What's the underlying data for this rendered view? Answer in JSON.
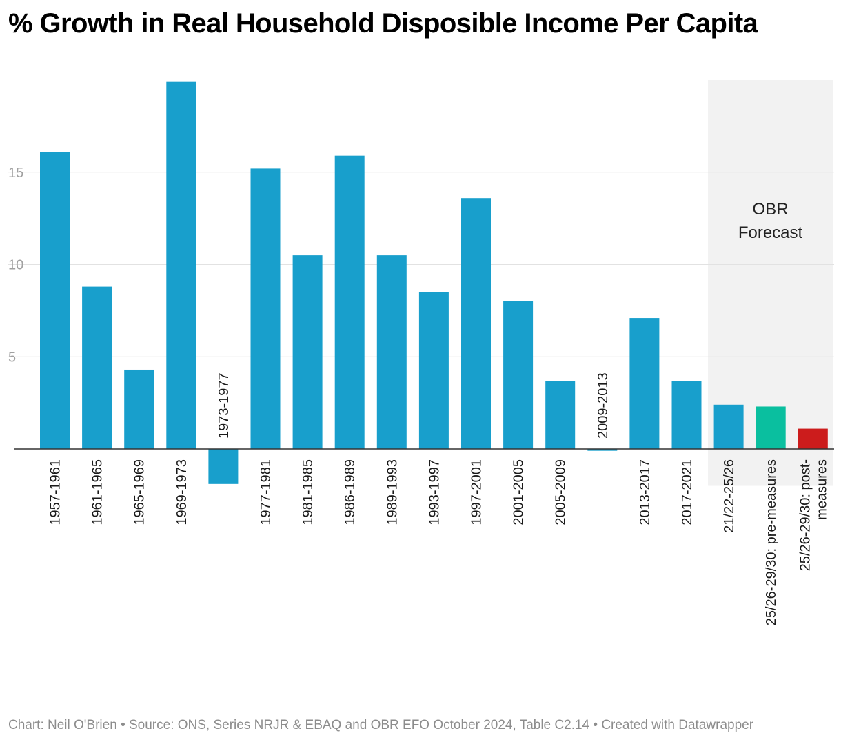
{
  "footer": "Chart: Neil O'Brien • Source: ONS, Series NRJR & EBAQ and OBR EFO October 2024, Table C2.14 • Created with Datawrapper",
  "chart_data": {
    "type": "bar",
    "title": "% Growth in Real Household Disposible Income Per Capita",
    "xlabel": "",
    "ylabel": "",
    "ylim": [
      -2,
      20
    ],
    "yticks": [
      5,
      10,
      15
    ],
    "grid": true,
    "categories": [
      "1957-1961",
      "1961-1965",
      "1965-1969",
      "1969-1973",
      "1973-1977",
      "1977-1981",
      "1981-1985",
      "1986-1989",
      "1989-1993",
      "1993-1997",
      "1997-2001",
      "2001-2005",
      "2005-2009",
      "2009-2013",
      "2013-2017",
      "2017-2021",
      "21/22-25/26",
      "25/26-29/30: pre-measures",
      "25/26-29/30: post-measures"
    ],
    "label_lines": [
      [
        "1957-1961"
      ],
      [
        "1961-1965"
      ],
      [
        "1965-1969"
      ],
      [
        "1969-1973"
      ],
      [
        "1973-1977"
      ],
      [
        "1977-1981"
      ],
      [
        "1981-1985"
      ],
      [
        "1986-1989"
      ],
      [
        "1989-1993"
      ],
      [
        "1993-1997"
      ],
      [
        "1997-2001"
      ],
      [
        "2001-2005"
      ],
      [
        "2005-2009"
      ],
      [
        "2009-2013"
      ],
      [
        "2013-2017"
      ],
      [
        "2017-2021"
      ],
      [
        "21/22-25/26"
      ],
      [
        "25/26-29/30: pre-measures"
      ],
      [
        "25/26-29/30: post-",
        "measures"
      ]
    ],
    "values": [
      16.1,
      8.8,
      4.3,
      19.9,
      -1.9,
      15.2,
      10.5,
      15.9,
      10.5,
      8.5,
      13.6,
      8.0,
      3.7,
      -0.1,
      7.1,
      3.7,
      2.4,
      2.3,
      1.1
    ],
    "colors": [
      "#189fcc",
      "#189fcc",
      "#189fcc",
      "#189fcc",
      "#189fcc",
      "#189fcc",
      "#189fcc",
      "#189fcc",
      "#189fcc",
      "#189fcc",
      "#189fcc",
      "#189fcc",
      "#189fcc",
      "#189fcc",
      "#189fcc",
      "#189fcc",
      "#189fcc",
      "#0abf9f",
      "#cc1c1c"
    ],
    "forecast_region": {
      "label_lines": [
        "OBR",
        "Forecast"
      ],
      "from_index": 16,
      "to_index": 18,
      "color": "#f2f2f2"
    }
  }
}
